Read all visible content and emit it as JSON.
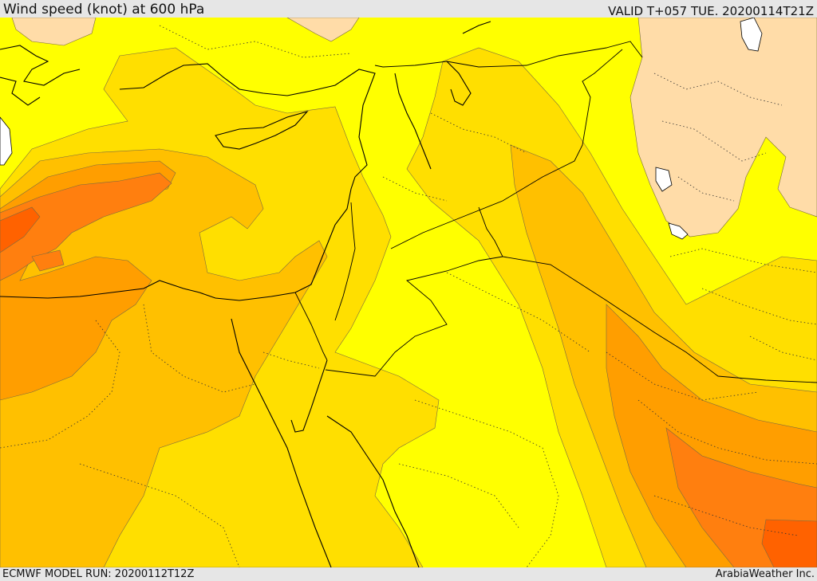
{
  "header": {
    "title": "Wind speed (knot) at 600 hPa",
    "valid_time": "VALID T+057 TUE. 20200114T21Z"
  },
  "footer": {
    "model_run": "ECMWF MODEL RUN: 20200112T12Z",
    "credit": "ArabiaWeather Inc."
  },
  "colors": {
    "band_lowest": "#ffdca8",
    "band_1": "#ffff00",
    "band_2": "#ffdf00",
    "band_3": "#ffc000",
    "band_4": "#ff9e00",
    "band_5": "#ff7f0f",
    "band_6": "#ff6200",
    "water": "#ffffff",
    "border_line": "#000000",
    "frame": "#e6e6e6"
  }
}
